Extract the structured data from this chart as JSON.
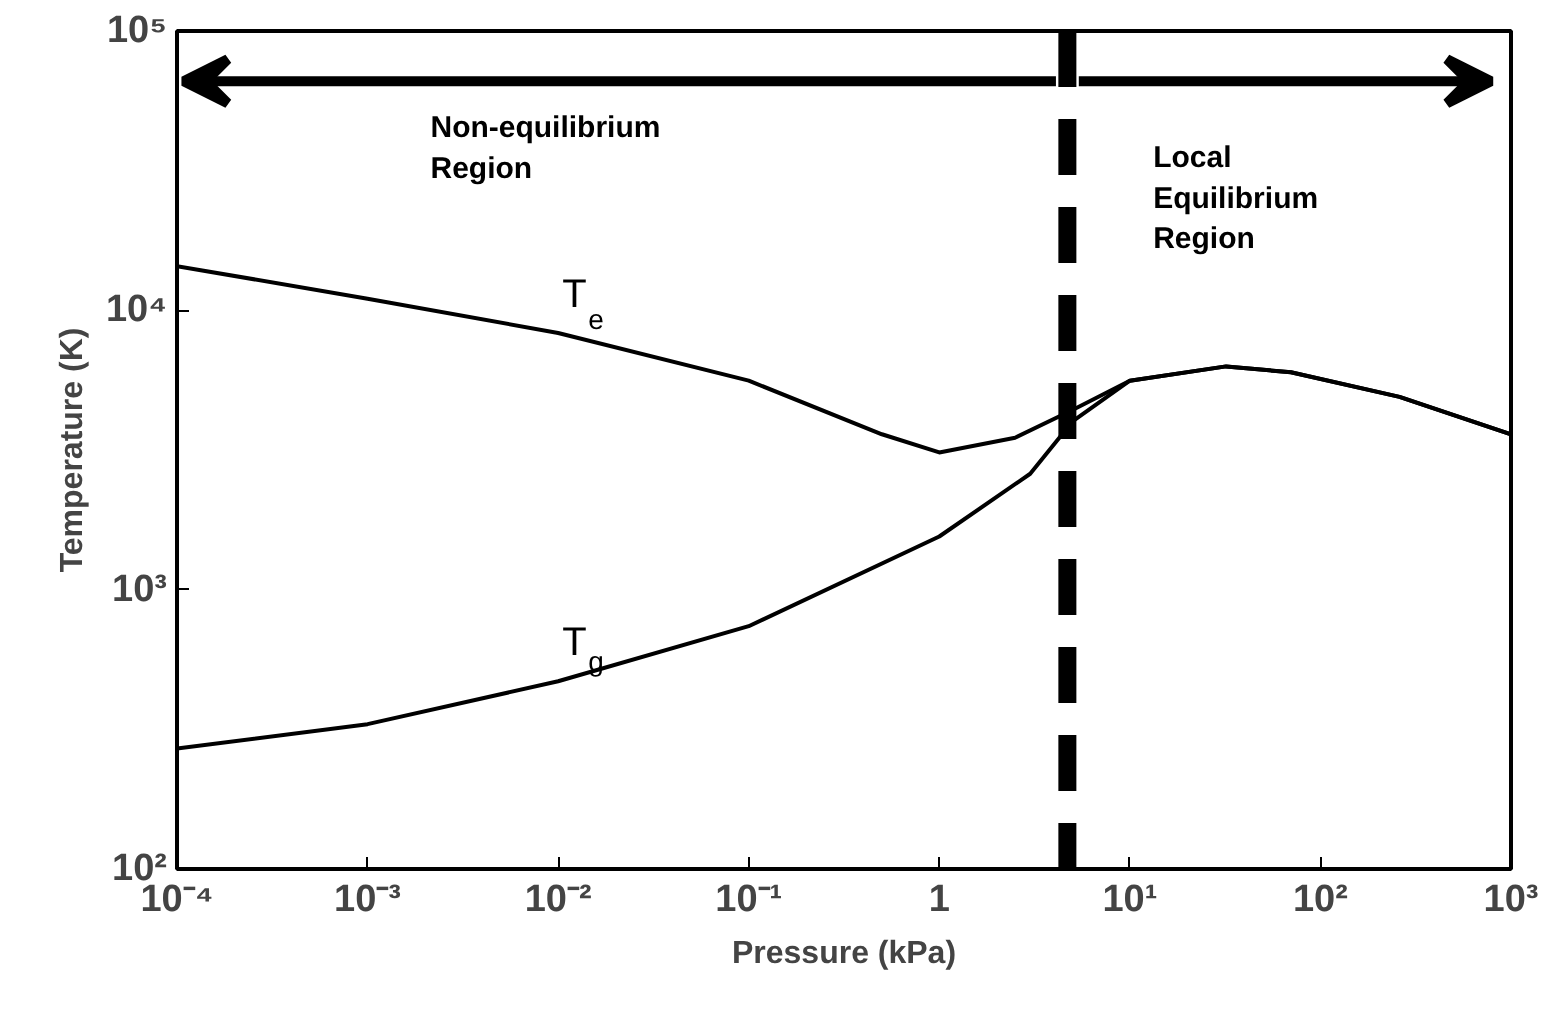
{
  "chart_data": {
    "type": "line",
    "xlabel": "Pressure (kPa)",
    "ylabel": "Temperature (K)",
    "log": "xy",
    "xlim": [
      0.0001,
      1000
    ],
    "ylim": [
      100,
      100000
    ],
    "xticks": [
      {
        "value": 0.0001,
        "label": "10⁻⁴"
      },
      {
        "value": 0.001,
        "label": "10⁻³"
      },
      {
        "value": 0.01,
        "label": "10⁻²"
      },
      {
        "value": 0.1,
        "label": "10⁻¹"
      },
      1,
      {
        "value": 10,
        "label": "10¹"
      },
      {
        "value": 100,
        "label": "10²"
      },
      {
        "value": 1000,
        "label": "10³"
      }
    ],
    "yticks": [
      {
        "value": 100,
        "label": "10²"
      },
      {
        "value": 1000,
        "label": "10³"
      },
      {
        "value": 10000,
        "label": "10⁴"
      },
      {
        "value": 100000,
        "label": "10⁵"
      }
    ],
    "series": [
      {
        "name": "T$_{e}$",
        "color": "#000000",
        "x": [
          0.0001,
          0.001,
          0.01,
          0.1,
          0.5,
          1,
          2.5,
          5,
          10,
          32,
          70,
          260,
          1000
        ],
        "values": [
          14400,
          11000,
          8300,
          5600,
          3600,
          3100,
          3500,
          4400,
          5600,
          6300,
          6000,
          4900,
          3600
        ]
      },
      {
        "name": "T$_{g}$",
        "color": "#000000",
        "x": [
          0.0001,
          0.001,
          0.01,
          0.1,
          1,
          3,
          5,
          10,
          32,
          70,
          260,
          1000
        ],
        "values": [
          270,
          330,
          470,
          740,
          1550,
          2600,
          4000,
          5600,
          6300,
          6000,
          4900,
          3600
        ]
      }
    ],
    "ref_lines": [
      {
        "axis": "x",
        "value": 4.7,
        "color": "#000000",
        "line_style": "dashed"
      }
    ],
    "annotations": [
      "Non-equilibrium\nRegion",
      "Local\nEquilibrium\nRegion"
    ],
    "grid": false,
    "marker": "none",
    "line_style": "solid"
  }
}
